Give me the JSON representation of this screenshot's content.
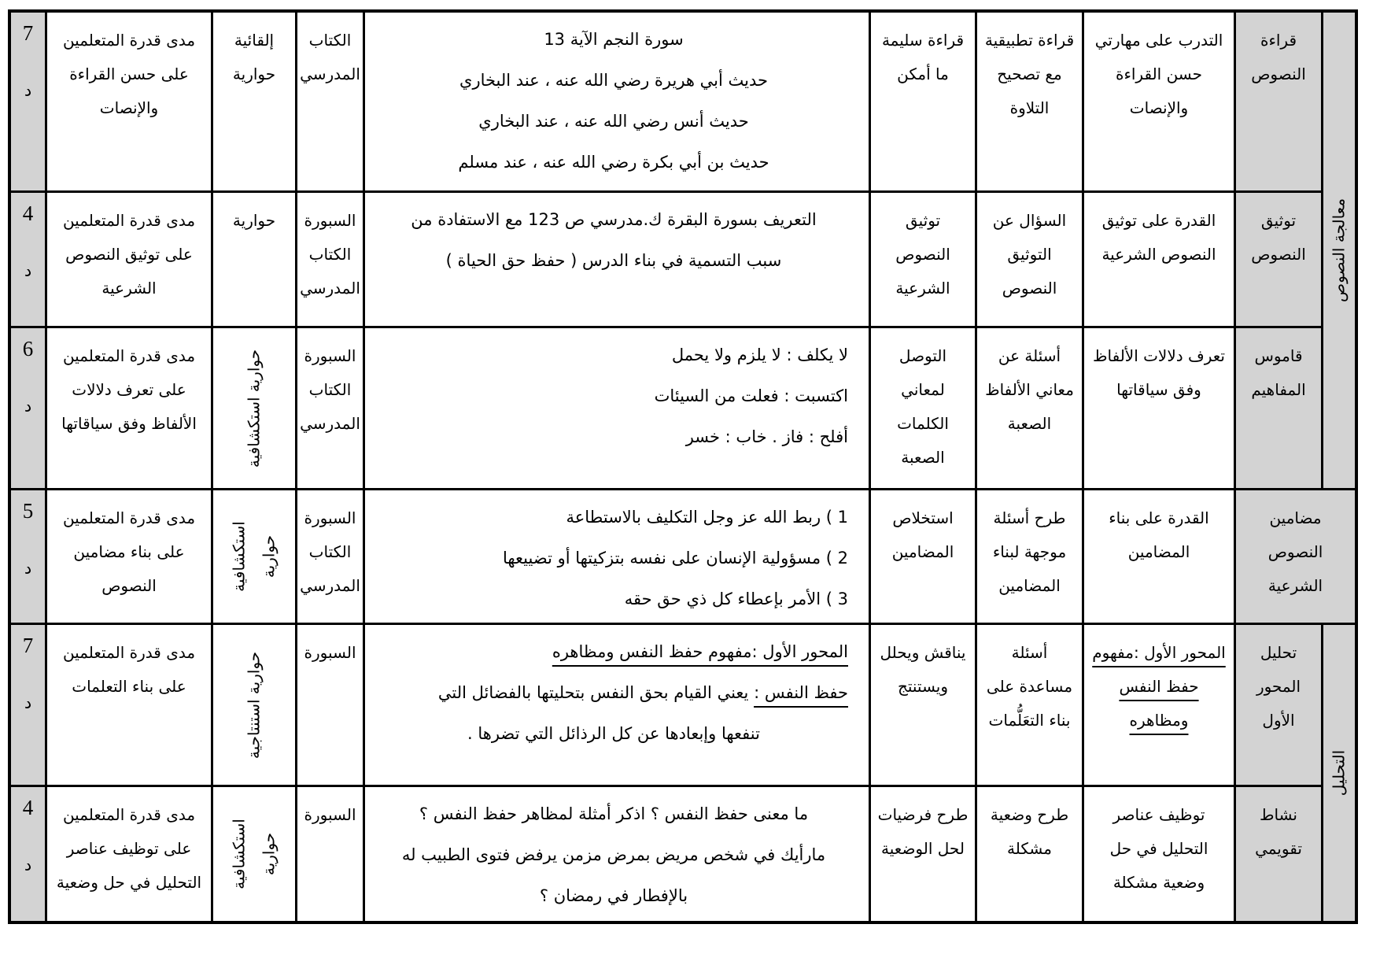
{
  "document": {
    "type": "lesson-plan-table",
    "language": "ar",
    "colors": {
      "cell_shade": "#d3d3d3",
      "border": "#000000",
      "text": "#000000",
      "background": "#ffffff"
    }
  },
  "groups": [
    {
      "label": "معالجة النصوص"
    },
    {
      "label": "التحليل"
    }
  ],
  "rows": [
    {
      "header": "قراءة النصوص",
      "capacity": "التدرب على مهارتي حسن القراءة والإنصات",
      "teacher": "قراءة تطبيقية مع تصحيح التلاوة",
      "learner": "قراءة سليمة ما أمكن",
      "content": [
        "سورة النجم الآية 13",
        "حديث أبي هريرة رضي الله عنه ، عند البخاري",
        "حديث أنس رضي الله عنه ، عند البخاري",
        "حديث بن أبي بكرة رضي الله عنه ، عند مسلم"
      ],
      "resources": "الكتاب المدرسي",
      "method": [
        "إلقائية",
        "حوارية"
      ],
      "evaluation": "مدى قدرة المتعلمين على حسن القراءة والإنصات",
      "time_value": "7",
      "time_unit": "د"
    },
    {
      "header": "توثيق النصوص",
      "capacity": "القدرة على توثيق النصوص الشرعية",
      "teacher": "السؤال عن التوثيق النصوص",
      "learner": "توثيق النصوص الشرعية",
      "content": [
        "التعريف بسورة البقرة ك.مدرسي ص 123 مع الاستفادة من",
        "سبب التسمية في بناء الدرس ( حفظ حق الحياة )"
      ],
      "resources": "السبورة الكتاب المدرسي",
      "method": [
        "حوارية"
      ],
      "evaluation": "مدى قدرة المتعلمين على توثيق النصوص الشرعية",
      "time_value": "4",
      "time_unit": "د"
    },
    {
      "header": "قاموس المفاهيم",
      "capacity": "تعرف دلالات الألفاظ وفق سياقاتها",
      "teacher": "أسئلة عن معاني الألفاظ الصعبة",
      "learner": "التوصل لمعاني الكلمات الصعبة",
      "content": [
        "لا يكلف : لا يلزم ولا يحمل",
        "اكتسبت : فعلت من السيئات",
        "أفلح : فاز .  خاب : خسر"
      ],
      "resources": "السبورة الكتاب المدرسي",
      "method": [
        "حوارية استكشافية"
      ],
      "evaluation": "مدى قدرة المتعلمين على تعرف دلالات الألفاظ وفق سياقاتها",
      "time_value": "6",
      "time_unit": "د"
    },
    {
      "header": "مضامين النصوص الشرعية",
      "capacity": "القدرة على بناء المضامين",
      "teacher": "طرح أسئلة موجهة لبناء المضامين",
      "learner": "استخلاص المضامين",
      "content": [
        "1 ) ربط الله عز وجل التكليف بالاستطاعة",
        "2 ) مسؤولية الإنسان على نفسه بتزكيتها أو تضييعها",
        "3 ) الأمر بإعطاء كل ذي حق حقه"
      ],
      "resources": "السبورة الكتاب المدرسي",
      "method": [
        "حوارية",
        "استكشافية"
      ],
      "evaluation": "مدى قدرة المتعلمين على بناء مضامين النصوص",
      "time_value": "5",
      "time_unit": "د"
    },
    {
      "header": "تحليل المحور الأول",
      "capacity": "المحور الأول :مفهوم حفظ النفس ومظاهره",
      "teacher": "أسئلة مساعدة على بناء التعَلُّمات",
      "learner": "يناقش ويحلل ويستنتج",
      "content_title": "المحور الأول :مفهوم حفظ النفس ومظاهره",
      "content_lead": "حفظ النفس :",
      "content_rest": " يعني القيام بحق النفس بتحليتها بالفضائل التي",
      "content_line3": "تنفعها وإبعادها عن كل الرذائل التي تضرها .",
      "resources": "السبورة",
      "method": [
        "حوارية استنتاجية"
      ],
      "evaluation": "مدى قدرة المتعلمين على بناء التعلمات",
      "time_value": "7",
      "time_unit": "د"
    },
    {
      "header": "نشاط تقويمي",
      "capacity": "توظيف عناصر التحليل في حل وضعية مشكلة",
      "teacher": "طرح وضعية مشكلة",
      "learner": "طرح فرضيات لحل الوضعية",
      "content": [
        "ما معنى حفظ النفس ؟ اذكر أمثلة لمظاهر حفظ النفس ؟",
        "مارأيك في شخص مريض بمرض مزمن يرفض فتوى الطبيب له",
        "بالإفطار في رمضان ؟"
      ],
      "resources": "السبورة",
      "method": [
        "حوارية",
        "استكشافية"
      ],
      "evaluation": "مدى قدرة المتعلمين على توظيف عناصر التحليل في حل وضعية",
      "time_value": "4",
      "time_unit": "د"
    }
  ]
}
